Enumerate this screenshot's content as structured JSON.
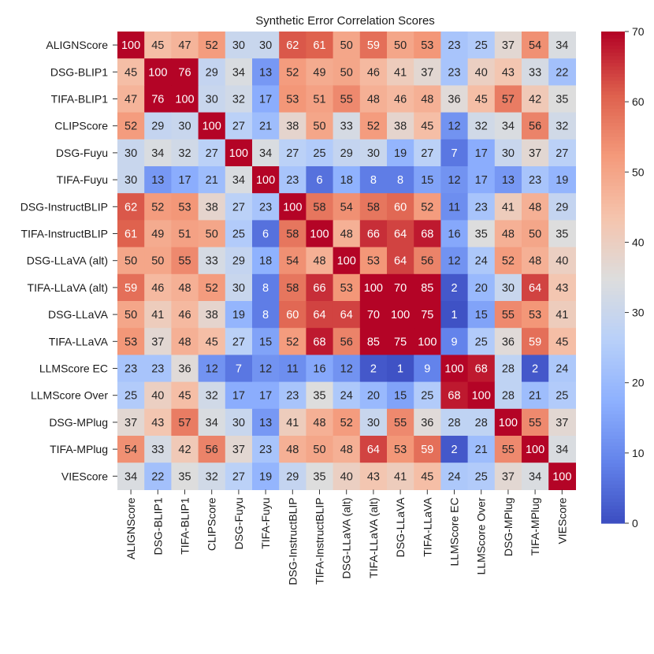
{
  "chart_data": {
    "type": "heatmap",
    "title": "Synthetic Error Correlation Scores",
    "labels": [
      "ALIGNScore",
      "DSG-BLIP1",
      "TIFA-BLIP1",
      "CLIPScore",
      "DSG-Fuyu",
      "TIFA-Fuyu",
      "DSG-InstructBLIP",
      "TIFA-InstructBLIP",
      "DSG-LLaVA (alt)",
      "TIFA-LLaVA (alt)",
      "DSG-LLaVA",
      "TIFA-LLaVA",
      "LLMScore EC",
      "LLMScore Over",
      "DSG-MPlug",
      "TIFA-MPlug",
      "VIEScore"
    ],
    "matrix": [
      [
        100,
        45,
        47,
        52,
        30,
        30,
        62,
        61,
        50,
        59,
        50,
        53,
        23,
        25,
        37,
        54,
        34
      ],
      [
        45,
        100,
        76,
        29,
        34,
        13,
        52,
        49,
        50,
        46,
        41,
        37,
        23,
        40,
        43,
        33,
        22
      ],
      [
        47,
        76,
        100,
        30,
        32,
        17,
        53,
        51,
        55,
        48,
        46,
        48,
        36,
        45,
        57,
        42,
        35
      ],
      [
        52,
        29,
        30,
        100,
        27,
        21,
        38,
        50,
        33,
        52,
        38,
        45,
        12,
        32,
        34,
        56,
        32
      ],
      [
        30,
        34,
        32,
        27,
        100,
        34,
        27,
        25,
        29,
        30,
        19,
        27,
        7,
        17,
        30,
        37,
        27
      ],
      [
        30,
        13,
        17,
        21,
        34,
        100,
        23,
        6,
        18,
        8,
        8,
        15,
        12,
        17,
        13,
        23,
        19
      ],
      [
        62,
        52,
        53,
        38,
        27,
        23,
        100,
        58,
        54,
        58,
        60,
        52,
        11,
        23,
        41,
        48,
        29
      ],
      [
        61,
        49,
        51,
        50,
        25,
        6,
        58,
        100,
        48,
        66,
        64,
        68,
        16,
        35,
        48,
        50,
        35
      ],
      [
        50,
        50,
        55,
        33,
        29,
        18,
        54,
        48,
        100,
        53,
        64,
        56,
        12,
        24,
        52,
        48,
        40
      ],
      [
        59,
        46,
        48,
        52,
        30,
        8,
        58,
        66,
        53,
        100,
        70,
        85,
        2,
        20,
        30,
        64,
        43
      ],
      [
        50,
        41,
        46,
        38,
        19,
        8,
        60,
        64,
        64,
        70,
        100,
        75,
        1,
        15,
        55,
        53,
        41
      ],
      [
        53,
        37,
        48,
        45,
        27,
        15,
        52,
        68,
        56,
        85,
        75,
        100,
        9,
        25,
        36,
        59,
        45
      ],
      [
        23,
        23,
        36,
        12,
        7,
        12,
        11,
        16,
        12,
        2,
        1,
        9,
        100,
        68,
        28,
        2,
        24
      ],
      [
        25,
        40,
        45,
        32,
        17,
        17,
        23,
        35,
        24,
        20,
        15,
        25,
        68,
        100,
        28,
        21,
        25
      ],
      [
        37,
        43,
        57,
        34,
        30,
        13,
        41,
        48,
        52,
        30,
        55,
        36,
        28,
        28,
        100,
        55,
        37
      ],
      [
        54,
        33,
        42,
        56,
        37,
        23,
        48,
        50,
        48,
        64,
        53,
        59,
        2,
        21,
        55,
        100,
        34
      ],
      [
        34,
        22,
        35,
        32,
        27,
        19,
        29,
        35,
        40,
        43,
        41,
        45,
        24,
        25,
        37,
        34,
        100
      ]
    ],
    "colorbar": {
      "min": 0,
      "max": 70,
      "ticks": [
        0,
        10,
        20,
        30,
        40,
        50,
        60,
        70
      ]
    },
    "colormap": "coolwarm",
    "colors": {
      "low": "#3b4cc0",
      "mid": "#dddddd",
      "high": "#b40426"
    }
  }
}
